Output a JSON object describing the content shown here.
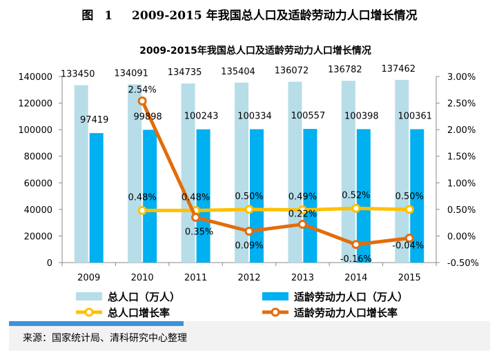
{
  "figure": {
    "label": "图",
    "number": "1",
    "title": "2009-2015 年我国总人口及适龄劳动力人口增长情况"
  },
  "source": "来源：国家统计局、清科研究中心整理",
  "chart_data": {
    "type": "bar+line",
    "title": "2009-2015年我国总人口及适龄劳动力人口增长情况",
    "categories": [
      "2009",
      "2010",
      "2011",
      "2012",
      "2013",
      "2014",
      "2015"
    ],
    "bar_series": [
      {
        "name": "总人口（万人）",
        "color": "#b7dde8",
        "values": [
          133450,
          134091,
          134735,
          135404,
          136072,
          136782,
          137462
        ]
      },
      {
        "name": "适龄劳动力人口（万人）",
        "color": "#00b0f0",
        "values": [
          97419,
          99898,
          100243,
          100334,
          100557,
          100398,
          100361
        ]
      }
    ],
    "line_series": [
      {
        "name": "总人口增长率",
        "color": "#ffc000",
        "marker_fill": "#ffffff",
        "values": [
          null,
          0.48,
          0.48,
          0.5,
          0.49,
          0.52,
          0.5
        ],
        "labels": [
          "",
          "0.48%",
          "0.48%",
          "0.50%",
          "0.49%",
          "0.52%",
          "0.50%"
        ]
      },
      {
        "name": "适龄劳动力人口增长率",
        "color": "#e46c0a",
        "marker_fill": "#ffffff",
        "values": [
          null,
          2.54,
          0.35,
          0.09,
          0.22,
          -0.16,
          -0.04
        ],
        "labels": [
          "",
          "2.54%",
          "0.35%",
          "0.09%",
          "0.22%",
          "-0.16%",
          "-0.04%"
        ]
      }
    ],
    "y_left": {
      "min": 0,
      "max": 140000,
      "ticks": [
        "0",
        "20000",
        "40000",
        "60000",
        "80000",
        "100000",
        "120000",
        "140000"
      ]
    },
    "y_right": {
      "min": -0.5,
      "max": 3.0,
      "ticks": [
        "-0.50%",
        "0.00%",
        "0.50%",
        "1.00%",
        "1.50%",
        "2.00%",
        "2.50%",
        "3.00%"
      ]
    },
    "legend_position": "bottom",
    "grid": false
  }
}
